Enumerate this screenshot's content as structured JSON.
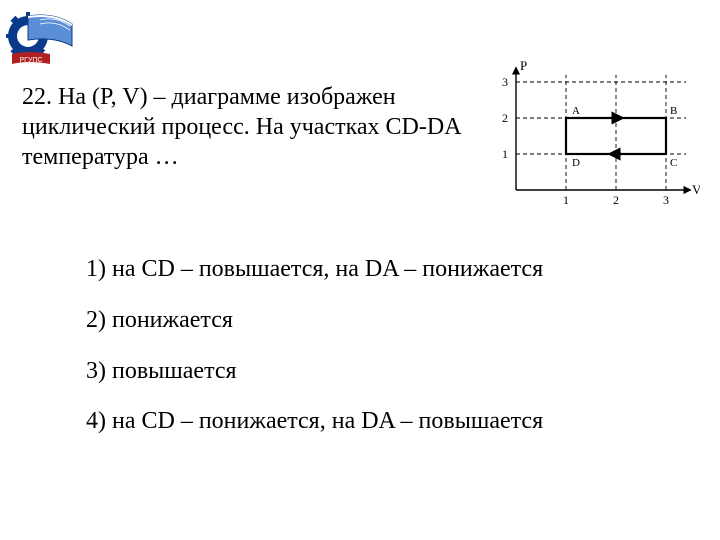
{
  "question": {
    "text": "22. На (P, V) – диаграмме  изображен циклический процесс. На участках CD-DA температура …"
  },
  "options": {
    "opt1": "1) на CD – повышается, на DA – понижается",
    "opt2": "2) понижается",
    "opt3": "3) повышается",
    "opt4": "4) на CD – понижается, на DA – повышается"
  },
  "chart": {
    "type": "pv-diagram",
    "y_label": "P",
    "x_label": "V",
    "y_ticks": [
      "1",
      "2",
      "3"
    ],
    "x_ticks": [
      "1",
      "2",
      "3"
    ],
    "points": {
      "A": {
        "x": 1,
        "y": 2,
        "label": "A"
      },
      "B": {
        "x": 3,
        "y": 2,
        "label": "B"
      },
      "C": {
        "x": 3,
        "y": 1,
        "label": "C"
      },
      "D": {
        "x": 1,
        "y": 1,
        "label": "D"
      }
    },
    "axis_color": "#000000",
    "grid_color": "#000000",
    "grid_dash": "4,3",
    "cycle_color": "#000000",
    "cycle_width": 2.2,
    "font_family": "Times New Roman",
    "tick_fontsize": 12,
    "label_fontsize": 13,
    "point_label_fontsize": 11,
    "background": "#ffffff",
    "plot": {
      "ox": 36,
      "oy": 130,
      "ux": 50,
      "uy": 36
    }
  },
  "logo": {
    "gear_color": "#0a3a8a",
    "book_color": "#5a8fd6",
    "ribbon_color": "#b02020",
    "page_color": "#ffffff",
    "text": "РГУПС"
  }
}
